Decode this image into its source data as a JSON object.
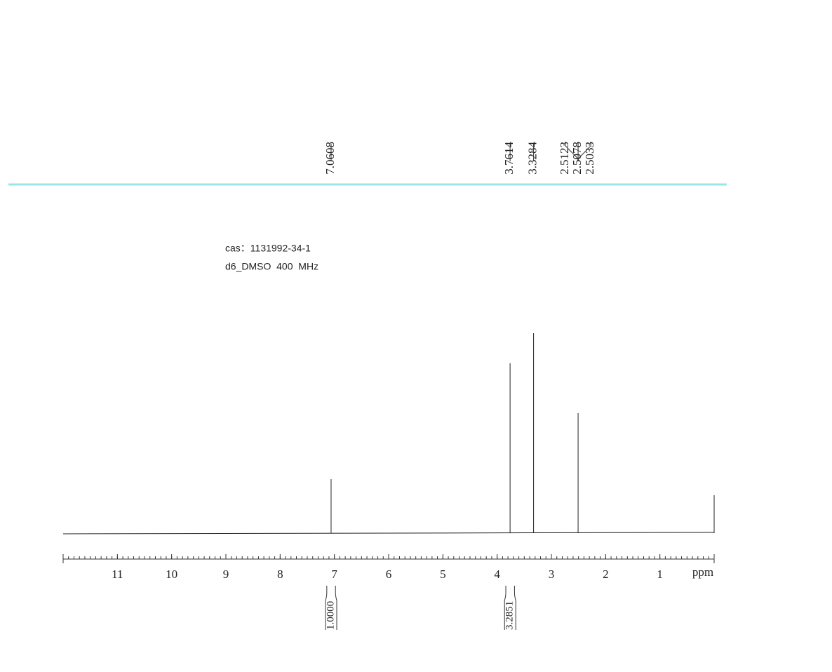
{
  "chart_data": {
    "type": "nmr",
    "annotations": [
      "cas：1131992-34-1",
      "d6_DMSO  400  MHz"
    ],
    "peak_labels": [
      7.0608,
      3.7614,
      3.3284,
      2.5123,
      2.5078,
      2.5033
    ],
    "x": [
      7.0608,
      3.7614,
      3.3284,
      2.5078,
      0
    ],
    "values": [
      27,
      85,
      100,
      60,
      19
    ],
    "ylim": [
      0,
      100
    ],
    "xlim": [
      12,
      0
    ],
    "xticks": [
      11,
      10,
      9,
      8,
      7,
      6,
      5,
      4,
      3,
      2,
      1
    ],
    "xlabel": "ppm",
    "integral_ranges": [
      [
        7.14,
        6.98
      ],
      [
        3.84,
        3.68
      ]
    ],
    "integral_values": [
      {
        "value": 1,
        "label": "1.0000"
      },
      3.2851
    ],
    "color": "#222222"
  }
}
